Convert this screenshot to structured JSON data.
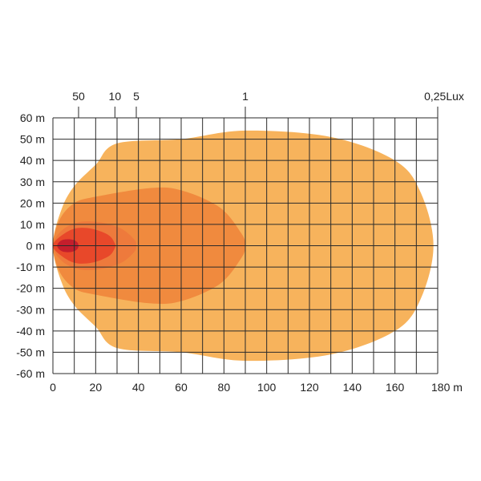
{
  "chart_data": {
    "type": "isolux-contour",
    "x_unit": "m",
    "y_unit": "m",
    "xlim": [
      0,
      180
    ],
    "ylim": [
      -60,
      60
    ],
    "grid": true,
    "x_grid_step": 10,
    "y_grid_step": 10,
    "x_ticks": [
      0,
      20,
      40,
      60,
      80,
      100,
      120,
      140,
      160,
      180
    ],
    "x_tick_labels": [
      "0",
      "20",
      "40",
      "60",
      "80",
      "100",
      "120",
      "140",
      "160",
      "180 m"
    ],
    "y_ticks": [
      60,
      50,
      40,
      30,
      20,
      10,
      0,
      -10,
      -20,
      -30,
      -40,
      -50,
      -60
    ],
    "y_tick_labels": [
      "60 m",
      "50 m",
      "40 m",
      "30 m",
      "20 m",
      "10 m",
      "0 m",
      "-10 m",
      "-20 m",
      "-30 m",
      "-40 m",
      "-50 m",
      "-60 m"
    ],
    "lux_markers": [
      {
        "label": "50",
        "x": 12
      },
      {
        "label": "10",
        "x": 29
      },
      {
        "label": "5",
        "x": 39
      },
      {
        "label": "1",
        "x": 90
      },
      {
        "label": "0,25Lux",
        "x": 180
      }
    ],
    "contours": [
      {
        "lux": "0,25",
        "color": "#f7b35c",
        "points": [
          [
            0,
            0
          ],
          [
            4,
            17
          ],
          [
            10,
            28
          ],
          [
            20,
            38
          ],
          [
            30,
            48
          ],
          [
            60,
            50
          ],
          [
            90,
            54
          ],
          [
            130,
            51
          ],
          [
            160,
            40
          ],
          [
            172,
            25
          ],
          [
            178,
            0
          ],
          [
            172,
            -25
          ],
          [
            160,
            -40
          ],
          [
            130,
            -51
          ],
          [
            90,
            -54
          ],
          [
            60,
            -50
          ],
          [
            30,
            -48
          ],
          [
            20,
            -38
          ],
          [
            10,
            -28
          ],
          [
            4,
            -17
          ]
        ]
      },
      {
        "lux": "1",
        "color": "#f08a3e",
        "points": [
          [
            0,
            0
          ],
          [
            3,
            12
          ],
          [
            10,
            20
          ],
          [
            20,
            23
          ],
          [
            45,
            27
          ],
          [
            60,
            26
          ],
          [
            78,
            18
          ],
          [
            88,
            6
          ],
          [
            90,
            0
          ],
          [
            88,
            -6
          ],
          [
            78,
            -18
          ],
          [
            60,
            -26
          ],
          [
            45,
            -27
          ],
          [
            20,
            -23
          ],
          [
            10,
            -20
          ],
          [
            3,
            -12
          ]
        ]
      },
      {
        "lux": "5",
        "color": "#ee7a3c",
        "points": [
          [
            0,
            0
          ],
          [
            4,
            7
          ],
          [
            12,
            11
          ],
          [
            22,
            11
          ],
          [
            32,
            8
          ],
          [
            38,
            3
          ],
          [
            39,
            0
          ],
          [
            38,
            -3
          ],
          [
            32,
            -8
          ],
          [
            22,
            -11
          ],
          [
            12,
            -11
          ],
          [
            4,
            -7
          ]
        ]
      },
      {
        "lux": "10",
        "color": "#e8482a",
        "points": [
          [
            0,
            0
          ],
          [
            3,
            4
          ],
          [
            10,
            8
          ],
          [
            18,
            8
          ],
          [
            26,
            5
          ],
          [
            29,
            1
          ],
          [
            29,
            -1
          ],
          [
            26,
            -5
          ],
          [
            18,
            -8
          ],
          [
            10,
            -8
          ],
          [
            3,
            -4
          ]
        ]
      },
      {
        "lux": "50",
        "color": "#c41e2c",
        "points": [
          [
            2,
            0
          ],
          [
            4,
            2.5
          ],
          [
            8,
            3
          ],
          [
            11,
            2
          ],
          [
            12,
            0
          ],
          [
            11,
            -2
          ],
          [
            8,
            -3
          ],
          [
            4,
            -2.5
          ]
        ]
      }
    ]
  }
}
